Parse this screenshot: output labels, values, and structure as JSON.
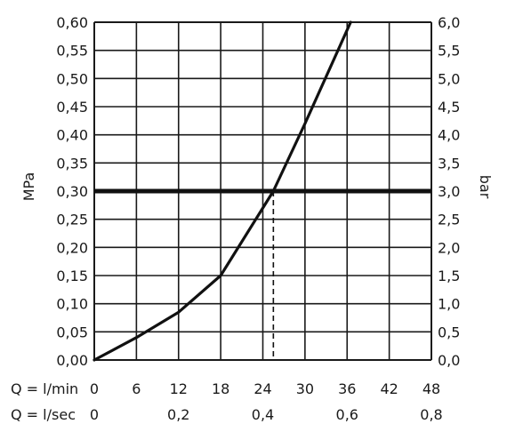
{
  "chart_data": {
    "type": "line",
    "x": [
      0,
      6,
      12,
      18,
      24,
      25.5,
      30,
      36.5
    ],
    "y": [
      0,
      0.04,
      0.085,
      0.15,
      0.27,
      0.3,
      0.42,
      0.6
    ],
    "xlim": [
      0,
      48
    ],
    "ylim": [
      0,
      0.6
    ],
    "grid": true,
    "y_left": {
      "label": "MPa",
      "ticks": [
        0,
        0.05,
        0.1,
        0.15,
        0.2,
        0.25,
        0.3,
        0.35,
        0.4,
        0.45,
        0.5,
        0.55,
        0.6
      ],
      "tick_labels": [
        "0,00",
        "0,05",
        "0,10",
        "0,15",
        "0,20",
        "0,25",
        "0,30",
        "0,35",
        "0,40",
        "0,45",
        "0,50",
        "0,55",
        "0,60"
      ]
    },
    "y_right": {
      "label": "bar",
      "tick_labels": [
        "0,0",
        "0,5",
        "1,0",
        "1,5",
        "2,0",
        "2,5",
        "3,0",
        "3,5",
        "4,0",
        "4,5",
        "5,0",
        "5,5",
        "6,0"
      ]
    },
    "x_lpm": {
      "prefix": "Q = l/min",
      "ticks": [
        0,
        6,
        12,
        18,
        24,
        30,
        36,
        42,
        48
      ],
      "tick_labels": [
        "0",
        "6",
        "12",
        "18",
        "24",
        "30",
        "36",
        "42",
        "48"
      ]
    },
    "x_lps": {
      "prefix": "Q = l/sec",
      "ticks": [
        0,
        12,
        24,
        36,
        48
      ],
      "tick_labels": [
        "0",
        "0,2",
        "0,4",
        "0,6",
        "0,8"
      ]
    },
    "reference_line": {
      "y": 0.3
    },
    "operating_point": {
      "x": 25.5,
      "y": 0.3
    }
  }
}
